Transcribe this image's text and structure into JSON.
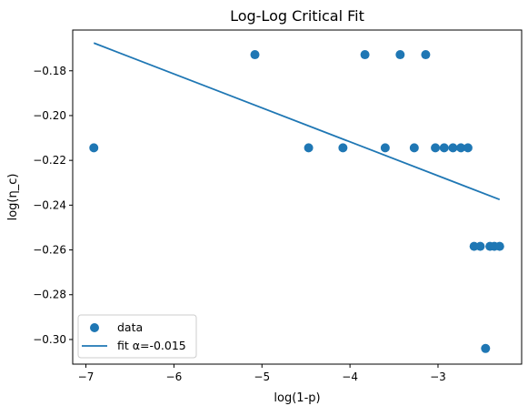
{
  "chart_data": {
    "type": "scatter",
    "title": "Log-Log Critical Fit",
    "xlabel": "log(1-p)",
    "ylabel": "log(η_c)",
    "xlim": [
      -7.15,
      -2.05
    ],
    "ylim": [
      -0.311,
      -0.1618
    ],
    "xticks": [
      -7,
      -6,
      -5,
      -4,
      -3
    ],
    "xtick_labels": [
      "−7",
      "−6",
      "−5",
      "−4",
      "−3"
    ],
    "yticks": [
      -0.3,
      -0.28,
      -0.26,
      -0.24,
      -0.22,
      -0.2,
      -0.18
    ],
    "ytick_labels": [
      "−0.30",
      "−0.28",
      "−0.26",
      "−0.24",
      "−0.22",
      "−0.20",
      "−0.18"
    ],
    "grid": false,
    "legend_position": "lower-left",
    "series": [
      {
        "name": "data",
        "kind": "scatter",
        "color": "#1f77b4",
        "points": [
          {
            "x": -6.91,
            "y": -0.2144
          },
          {
            "x": -5.08,
            "y": -0.1728
          },
          {
            "x": -4.47,
            "y": -0.2144
          },
          {
            "x": -4.08,
            "y": -0.2144
          },
          {
            "x": -3.83,
            "y": -0.1728
          },
          {
            "x": -3.6,
            "y": -0.2144
          },
          {
            "x": -3.43,
            "y": -0.1728
          },
          {
            "x": -3.27,
            "y": -0.2144
          },
          {
            "x": -3.14,
            "y": -0.1728
          },
          {
            "x": -3.03,
            "y": -0.2144
          },
          {
            "x": -2.93,
            "y": -0.2144
          },
          {
            "x": -2.83,
            "y": -0.2144
          },
          {
            "x": -2.74,
            "y": -0.2144
          },
          {
            "x": -2.66,
            "y": -0.2144
          },
          {
            "x": -2.59,
            "y": -0.2584
          },
          {
            "x": -2.52,
            "y": -0.2584
          },
          {
            "x": -2.46,
            "y": -0.304
          },
          {
            "x": -2.41,
            "y": -0.2584
          },
          {
            "x": -2.36,
            "y": -0.2584
          },
          {
            "x": -2.3,
            "y": -0.2584
          }
        ]
      },
      {
        "name": "fit α=-0.015",
        "kind": "line",
        "color": "#1f77b4",
        "points": [
          {
            "x": -6.91,
            "y": -0.1676
          },
          {
            "x": -2.3,
            "y": -0.2375
          }
        ]
      }
    ]
  }
}
